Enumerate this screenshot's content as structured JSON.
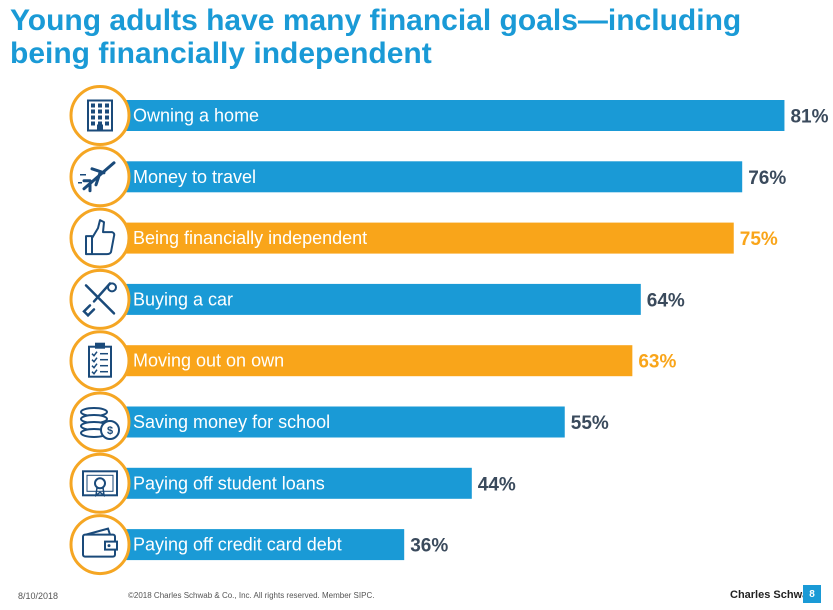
{
  "title": "Young adults have many financial goals—including being financially independent",
  "footer": {
    "date": "8/10/2018",
    "copyright": "©2018 Charles Schwab & Co., Inc. All rights reserved. Member SIPC.",
    "brand": "Charles Schwab",
    "page": "8"
  },
  "colors": {
    "primary": "#1a9ad6",
    "highlight": "#f9a51a",
    "value_text": "#3a4a5c",
    "icon_ring": "#f5a623"
  },
  "chart_data": {
    "type": "bar",
    "orientation": "horizontal",
    "title": "Young adults have many financial goals—including being financially independent",
    "xlabel": "",
    "ylabel": "",
    "xlim": [
      0,
      100
    ],
    "grid": false,
    "categories": [
      "Owning a home",
      "Money to travel",
      "Being financially independent",
      "Buying a car",
      "Moving out on own",
      "Saving money for school",
      "Paying off student loans",
      "Paying off credit card debt"
    ],
    "values": [
      81,
      76,
      75,
      64,
      63,
      55,
      44,
      36
    ],
    "value_labels": [
      "81%",
      "76%",
      "75%",
      "64%",
      "63%",
      "55%",
      "44%",
      "36%"
    ],
    "highlighted": [
      false,
      false,
      true,
      false,
      true,
      false,
      false,
      false
    ],
    "icons": [
      "building-icon",
      "airplane-icon",
      "thumbs-up-icon",
      "wrench-screwdriver-icon",
      "clipboard-checklist-icon",
      "coins-dollar-icon",
      "certificate-icon",
      "wallet-icon"
    ]
  }
}
